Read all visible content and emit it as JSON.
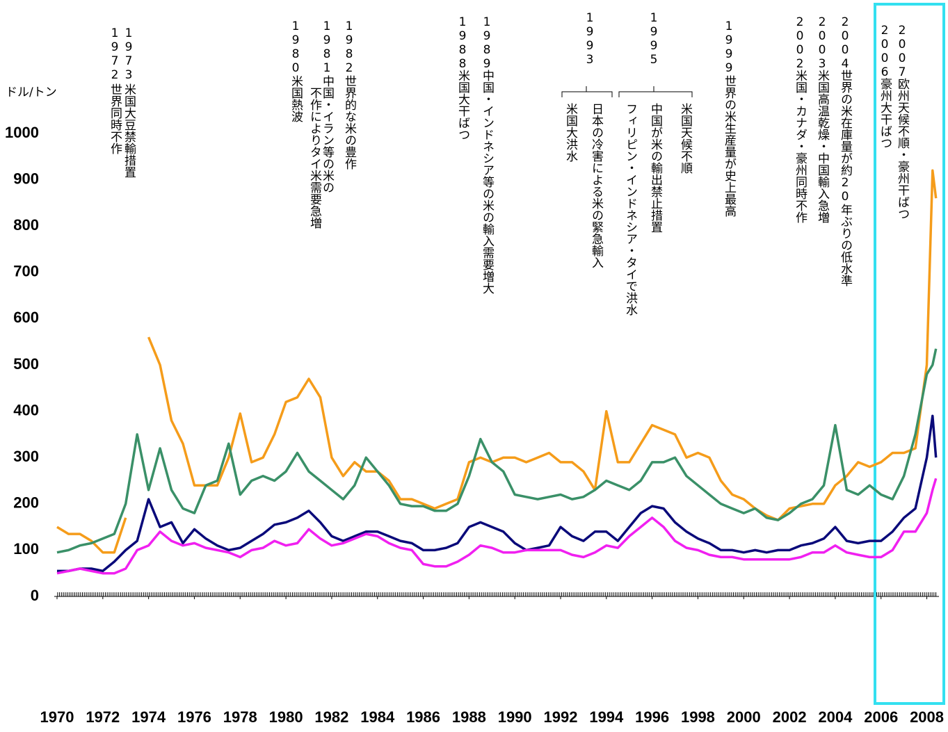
{
  "chart_data": {
    "type": "line",
    "unit_label": "ドル/トン",
    "x": [
      1970,
      1970.5,
      1971,
      1971.5,
      1972,
      1972.5,
      1973,
      1973.5,
      1974,
      1974.5,
      1975,
      1975.5,
      1976,
      1976.5,
      1977,
      1977.5,
      1978,
      1978.5,
      1979,
      1979.5,
      1980,
      1980.5,
      1981,
      1981.5,
      1982,
      1982.5,
      1983,
      1983.5,
      1984,
      1984.5,
      1985,
      1985.5,
      1986,
      1986.5,
      1987,
      1987.5,
      1988,
      1988.5,
      1989,
      1989.5,
      1990,
      1990.5,
      1991,
      1991.5,
      1992,
      1992.5,
      1993,
      1993.5,
      1994,
      1994.5,
      1995,
      1995.5,
      1996,
      1996.5,
      1997,
      1997.5,
      1998,
      1998.5,
      1999,
      1999.5,
      2000,
      2000.5,
      2001,
      2001.5,
      2002,
      2002.5,
      2003,
      2003.5,
      2004,
      2004.5,
      2005,
      2005.5,
      2006,
      2006.5,
      2007,
      2007.5,
      2008,
      2008.25,
      2008.4
    ],
    "series": [
      {
        "color": "#f59c1a",
        "values": [
          150,
          135,
          135,
          120,
          95,
          95,
          170,
          null,
          560,
          500,
          380,
          330,
          240,
          240,
          240,
          300,
          395,
          290,
          300,
          350,
          420,
          430,
          470,
          430,
          300,
          260,
          290,
          270,
          270,
          250,
          210,
          210,
          200,
          190,
          200,
          210,
          290,
          300,
          290,
          300,
          300,
          290,
          300,
          310,
          290,
          290,
          270,
          230,
          400,
          290,
          290,
          330,
          370,
          360,
          350,
          300,
          310,
          300,
          250,
          220,
          210,
          190,
          175,
          165,
          190,
          195,
          200,
          200,
          240,
          260,
          290,
          280,
          290,
          310,
          310,
          320,
          500,
          920,
          860
        ]
      },
      {
        "color": "#3a9068",
        "values": [
          95,
          100,
          110,
          115,
          125,
          135,
          200,
          350,
          230,
          320,
          230,
          190,
          180,
          240,
          250,
          330,
          220,
          250,
          260,
          250,
          270,
          310,
          270,
          250,
          230,
          210,
          240,
          300,
          270,
          240,
          200,
          195,
          195,
          185,
          185,
          200,
          260,
          340,
          290,
          270,
          220,
          215,
          210,
          215,
          220,
          210,
          215,
          230,
          250,
          240,
          230,
          250,
          290,
          290,
          300,
          260,
          240,
          220,
          200,
          190,
          180,
          190,
          170,
          165,
          180,
          200,
          210,
          240,
          370,
          230,
          220,
          240,
          220,
          210,
          260,
          350,
          480,
          500,
          535
        ]
      },
      {
        "color": "#0a0a7a",
        "values": [
          55,
          55,
          60,
          60,
          55,
          75,
          100,
          120,
          210,
          150,
          160,
          115,
          145,
          125,
          110,
          100,
          105,
          120,
          135,
          155,
          160,
          170,
          185,
          160,
          130,
          120,
          130,
          140,
          140,
          130,
          120,
          115,
          100,
          100,
          105,
          115,
          150,
          160,
          150,
          140,
          115,
          100,
          105,
          110,
          150,
          130,
          120,
          140,
          140,
          120,
          150,
          180,
          195,
          190,
          160,
          140,
          125,
          115,
          100,
          100,
          95,
          100,
          95,
          100,
          100,
          110,
          115,
          125,
          150,
          120,
          115,
          120,
          120,
          140,
          170,
          190,
          300,
          390,
          300
        ]
      },
      {
        "color": "#f020f0",
        "values": [
          50,
          55,
          60,
          55,
          50,
          50,
          60,
          100,
          110,
          140,
          120,
          110,
          115,
          105,
          100,
          95,
          85,
          100,
          105,
          120,
          110,
          115,
          145,
          125,
          110,
          115,
          125,
          135,
          130,
          115,
          105,
          100,
          70,
          65,
          65,
          75,
          90,
          110,
          105,
          95,
          95,
          100,
          100,
          100,
          100,
          90,
          85,
          95,
          110,
          105,
          130,
          150,
          170,
          150,
          120,
          105,
          100,
          90,
          85,
          85,
          80,
          80,
          80,
          80,
          80,
          85,
          95,
          95,
          110,
          95,
          90,
          85,
          85,
          100,
          140,
          140,
          180,
          230,
          255
        ]
      }
    ],
    "xlim": [
      1970,
      2008.5
    ],
    "xticks": [
      1970,
      1972,
      1974,
      1976,
      1978,
      1980,
      1982,
      1984,
      1986,
      1988,
      1990,
      1992,
      1994,
      1996,
      1998,
      2000,
      2002,
      2004,
      2006,
      2008
    ],
    "ylim": [
      0,
      1000
    ],
    "yticks": [
      0,
      100,
      200,
      300,
      400,
      500,
      600,
      700,
      800,
      900,
      1000
    ],
    "annotations": [
      {
        "year": "1972",
        "lines": [
          "世界同時不作"
        ]
      },
      {
        "year": "1973",
        "lines": [
          "米国大豆禁輸措置"
        ]
      },
      {
        "year": "1980",
        "lines": [
          "米国熱波"
        ]
      },
      {
        "year": "1981",
        "lines": [
          "中国・イラン等の米の",
          "不作によりタイ米需要急増"
        ]
      },
      {
        "year": "1982",
        "lines": [
          "世界的な米の豊作"
        ]
      },
      {
        "year": "1988",
        "lines": [
          "米国大干ばつ"
        ]
      },
      {
        "year": "1989",
        "lines": [
          "中国・インドネシア等の米の輸入需要増大"
        ]
      },
      {
        "year": "1993",
        "lines": [
          "日本の冷害による米の緊急輸入",
          "米国大洪水"
        ]
      },
      {
        "year": "1995",
        "lines": [
          "米国天候不順",
          "中国が米の輸出禁止措置",
          "フィリピン・インドネシア・タイで洪水"
        ]
      },
      {
        "year": "1999",
        "lines": [
          "世界の米生産量が史上最高"
        ]
      },
      {
        "year": "2002",
        "lines": [
          "米国・カナダ・豪州同時不作"
        ]
      },
      {
        "year": "2003",
        "lines": [
          "米国高温乾燥・中国輸入急増"
        ]
      },
      {
        "year": "2004",
        "lines": [
          "世界の米在庫量が約20年ぶりの低水準"
        ]
      },
      {
        "year": "2006",
        "lines": [
          "豪州大干ばつ"
        ]
      },
      {
        "year": "2007",
        "lines": [
          "欧州天候不順・豪州干ばつ"
        ]
      }
    ]
  }
}
